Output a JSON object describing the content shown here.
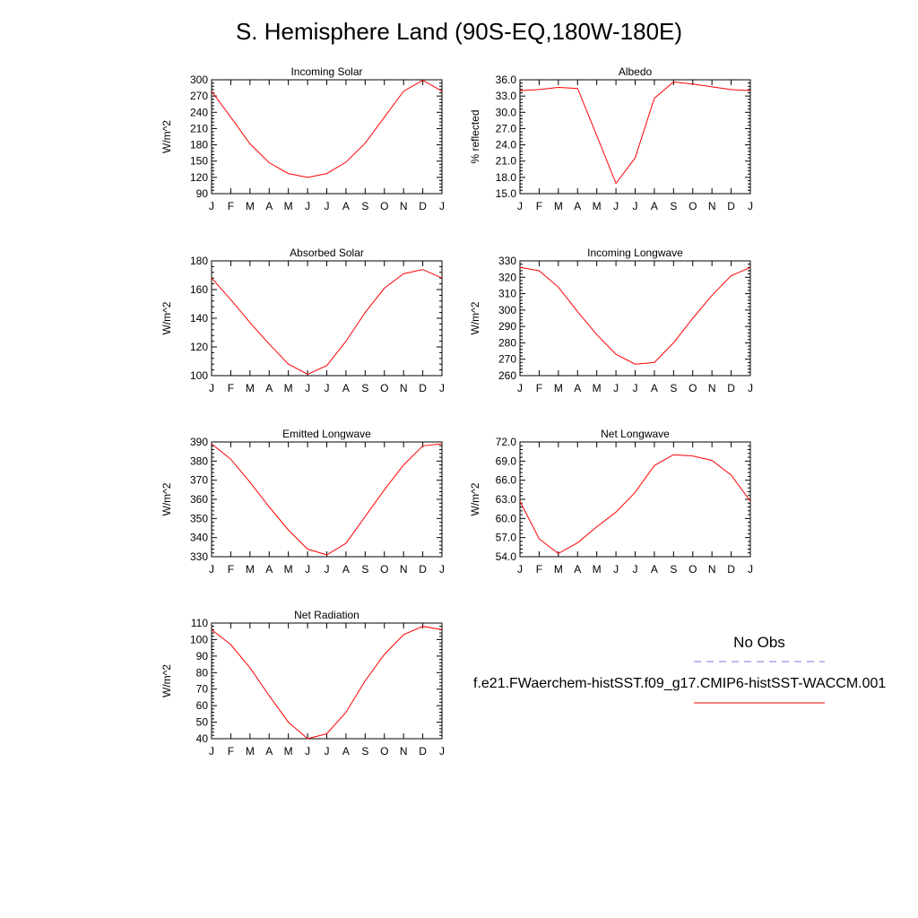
{
  "title": "S. Hemisphere Land (90S-EQ,180W-180E)",
  "legend": {
    "obs_label": "No Obs",
    "model_label": "f.e21.FWaerchem-histSST.f09_g17.CMIP6-histSST-WACCM.001",
    "obs_color": "#7777dd",
    "model_color": "#ff0000"
  },
  "chart_data": [
    {
      "type": "line",
      "title": "Incoming Solar",
      "ylabel": "W/m^2",
      "categories": [
        "J",
        "F",
        "M",
        "A",
        "M",
        "J",
        "J",
        "A",
        "S",
        "O",
        "N",
        "D",
        "J"
      ],
      "ylim": [
        90,
        300
      ],
      "yticks": [
        "90",
        "120",
        "150",
        "180",
        "210",
        "240",
        "270",
        "300"
      ],
      "series": [
        {
          "values": [
            279,
            231,
            182,
            147,
            127,
            120,
            127,
            148,
            183,
            231,
            279,
            299,
            279
          ]
        }
      ]
    },
    {
      "type": "line",
      "title": "Albedo",
      "ylabel": "% reflected",
      "categories": [
        "J",
        "F",
        "M",
        "A",
        "M",
        "J",
        "J",
        "A",
        "S",
        "O",
        "N",
        "D",
        "J"
      ],
      "ylim": [
        15,
        36
      ],
      "yticks": [
        "15.0",
        "18.0",
        "21.0",
        "24.0",
        "27.0",
        "30.0",
        "33.0",
        "36.0"
      ],
      "series": [
        {
          "values": [
            34.0,
            34.2,
            34.6,
            34.4,
            25.7,
            16.9,
            21.6,
            32.6,
            35.6,
            35.2,
            34.7,
            34.2,
            34.0
          ]
        }
      ]
    },
    {
      "type": "line",
      "title": "Absorbed Solar",
      "ylabel": "W/m^2",
      "categories": [
        "J",
        "F",
        "M",
        "A",
        "M",
        "J",
        "J",
        "A",
        "S",
        "O",
        "N",
        "D",
        "J"
      ],
      "ylim": [
        100,
        180
      ],
      "yticks": [
        "100",
        "120",
        "140",
        "160",
        "180"
      ],
      "series": [
        {
          "values": [
            168,
            153,
            137,
            122,
            108,
            101,
            107,
            124,
            144,
            161,
            171,
            174,
            168
          ]
        }
      ]
    },
    {
      "type": "line",
      "title": "Incoming Longwave",
      "ylabel": "W/m^2",
      "categories": [
        "J",
        "F",
        "M",
        "A",
        "M",
        "J",
        "J",
        "A",
        "S",
        "O",
        "N",
        "D",
        "J"
      ],
      "ylim": [
        260,
        330
      ],
      "yticks": [
        "260",
        "270",
        "280",
        "290",
        "300",
        "310",
        "320",
        "330"
      ],
      "series": [
        {
          "values": [
            326,
            324,
            314,
            299,
            285,
            273,
            267,
            268,
            280,
            295,
            309,
            321,
            326
          ]
        }
      ]
    },
    {
      "type": "line",
      "title": "Emitted Longwave",
      "ylabel": "W/m^2",
      "categories": [
        "J",
        "F",
        "M",
        "A",
        "M",
        "J",
        "J",
        "A",
        "S",
        "O",
        "N",
        "D",
        "J"
      ],
      "ylim": [
        330,
        390
      ],
      "yticks": [
        "330",
        "340",
        "350",
        "360",
        "370",
        "380",
        "390"
      ],
      "series": [
        {
          "values": [
            389,
            381,
            369,
            356,
            344,
            334,
            331,
            337,
            351,
            365,
            378,
            388,
            389
          ]
        }
      ]
    },
    {
      "type": "line",
      "title": "Net Longwave",
      "ylabel": "W/m^2",
      "categories": [
        "J",
        "F",
        "M",
        "A",
        "M",
        "J",
        "J",
        "A",
        "S",
        "O",
        "N",
        "D",
        "J"
      ],
      "ylim": [
        54,
        72
      ],
      "yticks": [
        "54.0",
        "57.0",
        "60.0",
        "63.0",
        "66.0",
        "69.0",
        "72.0"
      ],
      "series": [
        {
          "values": [
            62.7,
            56.8,
            54.5,
            56.2,
            58.7,
            61.0,
            64.1,
            68.3,
            70.0,
            69.8,
            69.1,
            66.8,
            62.7
          ]
        }
      ]
    },
    {
      "type": "line",
      "title": "Net Radiation",
      "ylabel": "W/m^2",
      "categories": [
        "J",
        "F",
        "M",
        "A",
        "M",
        "J",
        "J",
        "A",
        "S",
        "O",
        "N",
        "D",
        "J"
      ],
      "ylim": [
        40,
        110
      ],
      "yticks": [
        "40",
        "50",
        "60",
        "70",
        "80",
        "90",
        "100",
        "110"
      ],
      "series": [
        {
          "values": [
            106,
            97,
            83,
            66,
            50,
            40,
            43,
            56,
            75,
            91,
            103,
            108,
            106
          ]
        }
      ]
    }
  ]
}
